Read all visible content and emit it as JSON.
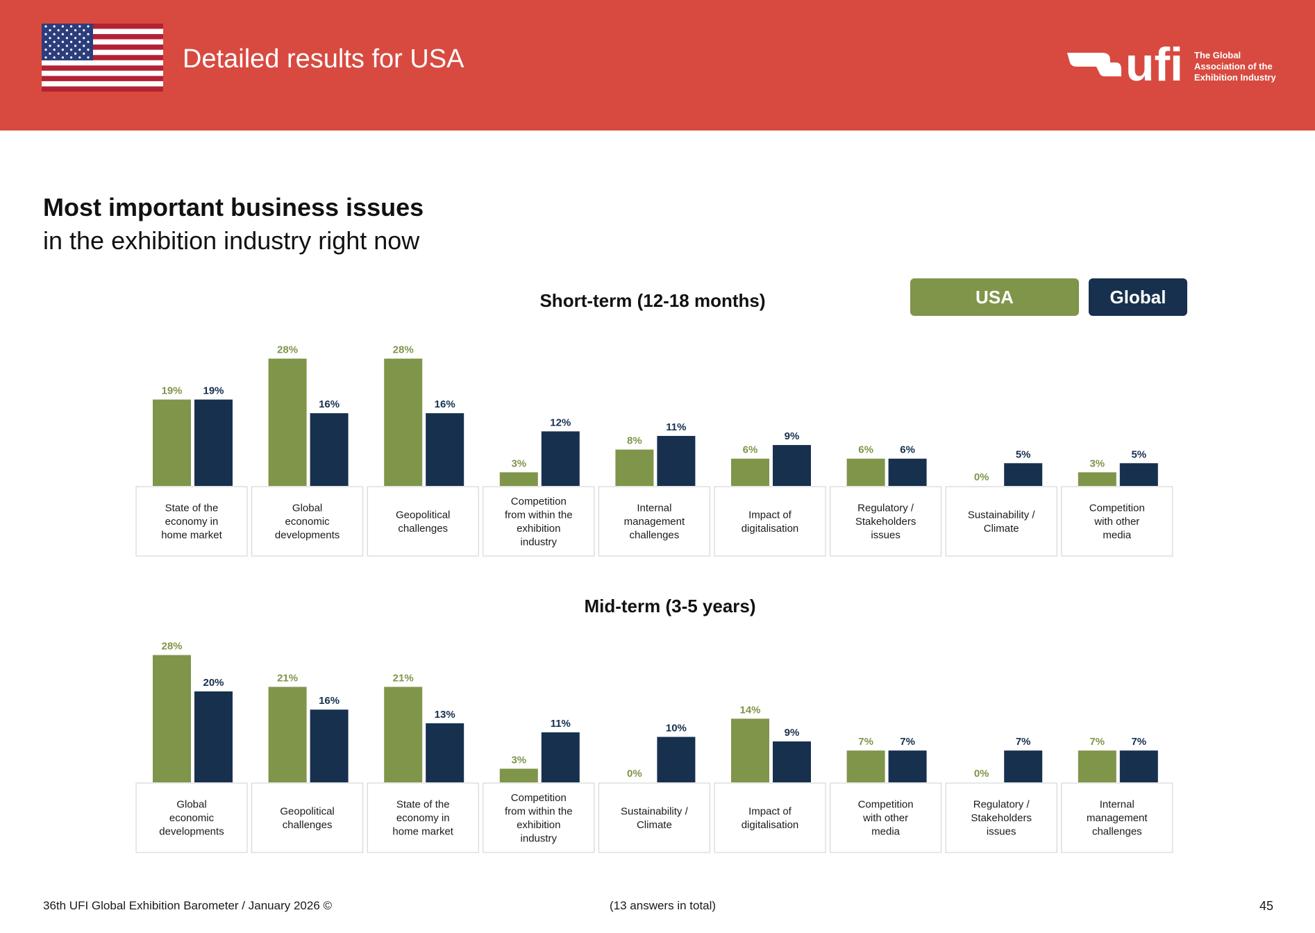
{
  "header": {
    "title": "Detailed results for USA",
    "logo_text": "ufi",
    "logo_tagline": [
      "The Global",
      "Association of the",
      "Exhibition Industry"
    ],
    "flag_icon": "usa-flag-icon"
  },
  "page": {
    "heading": "Most important business issues",
    "subheading": "in the exhibition industry right now"
  },
  "legend": {
    "usa_label": "USA",
    "global_label": "Global"
  },
  "colors": {
    "header_red": "#d84a40",
    "usa": "#7f954a",
    "global": "#17304e"
  },
  "chart_data": [
    {
      "type": "bar",
      "title": "Short-term (12-18 months)",
      "categories": [
        [
          "State of the",
          "economy in",
          "home market"
        ],
        [
          "Global",
          "economic",
          "developments"
        ],
        [
          "Geopolitical",
          "challenges"
        ],
        [
          "Competition",
          "from within the",
          "exhibition",
          "industry"
        ],
        [
          "Internal",
          "management",
          "challenges"
        ],
        [
          "Impact of",
          "digitalisation"
        ],
        [
          "Regulatory /",
          "Stakeholders",
          "issues"
        ],
        [
          "Sustainability /",
          "Climate"
        ],
        [
          "Competition",
          "with other",
          "media"
        ]
      ],
      "series": [
        {
          "name": "USA",
          "values": [
            19,
            28,
            28,
            3,
            8,
            6,
            6,
            0,
            3
          ],
          "labels": [
            "19%",
            "28%",
            "28%",
            "3%",
            "8%",
            "6%",
            "6%",
            "0%",
            "3%"
          ]
        },
        {
          "name": "Global",
          "values": [
            19,
            16,
            16,
            12,
            11,
            9,
            6,
            5,
            5
          ],
          "labels": [
            "19%",
            "16%",
            "16%",
            "12%",
            "11%",
            "9%",
            "6%",
            "5%",
            "5%"
          ]
        }
      ],
      "unit": "%"
    },
    {
      "type": "bar",
      "title": "Mid-term (3-5 years)",
      "categories": [
        [
          "Global",
          "economic",
          "developments"
        ],
        [
          "Geopolitical",
          "challenges"
        ],
        [
          "State of the",
          "economy in",
          "home market"
        ],
        [
          "Competition",
          "from within the",
          "exhibition",
          "industry"
        ],
        [
          "Sustainability /",
          "Climate"
        ],
        [
          "Impact of",
          "digitalisation"
        ],
        [
          "Competition",
          "with other",
          "media"
        ],
        [
          "Regulatory /",
          "Stakeholders",
          "issues"
        ],
        [
          "Internal",
          "management",
          "challenges"
        ]
      ],
      "series": [
        {
          "name": "USA",
          "values": [
            28,
            21,
            21,
            3,
            0,
            14,
            7,
            0,
            7
          ],
          "labels": [
            "28%",
            "21%",
            "21%",
            "3%",
            "0%",
            "14%",
            "7%",
            "0%",
            "7%"
          ]
        },
        {
          "name": "Global",
          "values": [
            20,
            16,
            13,
            11,
            10,
            9,
            7,
            7,
            7
          ],
          "labels": [
            "20%",
            "16%",
            "13%",
            "11%",
            "10%",
            "9%",
            "7%",
            "7%",
            "7%"
          ]
        }
      ],
      "unit": "%"
    }
  ],
  "footer": {
    "source": "36th UFI Global Exhibition Barometer / January 2026 ©",
    "note": "(13 answers in total)",
    "page_number": "45"
  }
}
